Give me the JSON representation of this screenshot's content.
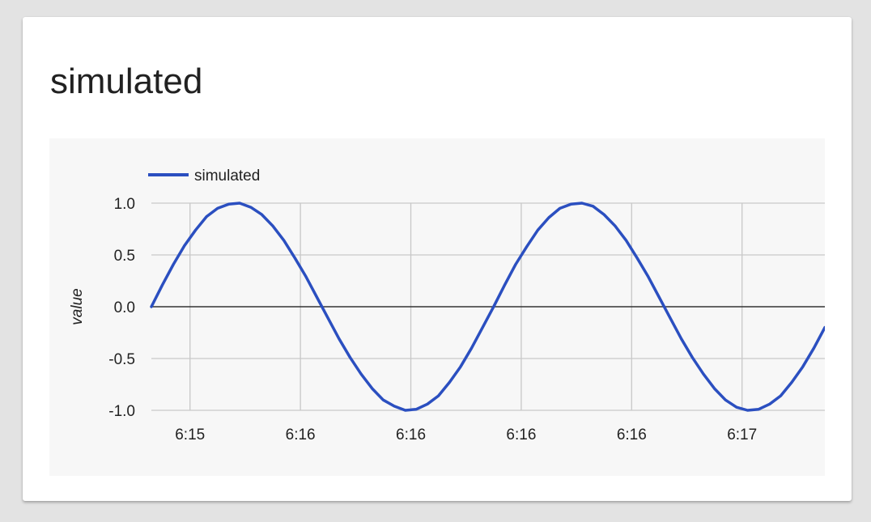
{
  "card": {
    "title": "simulated"
  },
  "chart_data": {
    "type": "line",
    "title": "",
    "xlabel": "",
    "ylabel": "value",
    "ylim": [
      -1.0,
      1.0
    ],
    "yticks": [
      "1.0",
      "0.5",
      "0.0",
      "-0.5",
      "-1.0"
    ],
    "yticks_values": [
      1.0,
      0.5,
      0.0,
      -0.5,
      -1.0
    ],
    "xticks": [
      "6:15",
      "6:16",
      "6:16",
      "6:16",
      "6:16",
      "6:17"
    ],
    "xticks_index": [
      3.5,
      13.5,
      23.5,
      33.5,
      43.5,
      53.5
    ],
    "x_extent": [
      0,
      61
    ],
    "legend": {
      "position": "top-left",
      "entries": [
        "simulated"
      ]
    },
    "grid": true,
    "colors": {
      "series": "#2b4fc0",
      "grid": "#c8c8c8",
      "zero_line": "#333333",
      "plot_bg": "#f7f7f7"
    },
    "series": [
      {
        "name": "simulated",
        "values": [
          0.0,
          0.21,
          0.41,
          0.59,
          0.74,
          0.87,
          0.95,
          0.99,
          1.0,
          0.96,
          0.89,
          0.78,
          0.64,
          0.47,
          0.29,
          0.09,
          -0.11,
          -0.31,
          -0.49,
          -0.65,
          -0.79,
          -0.9,
          -0.96,
          -1.0,
          -0.99,
          -0.94,
          -0.86,
          -0.73,
          -0.58,
          -0.4,
          -0.2,
          0.0,
          0.21,
          0.41,
          0.58,
          0.74,
          0.86,
          0.95,
          0.99,
          1.0,
          0.97,
          0.89,
          0.78,
          0.64,
          0.47,
          0.29,
          0.09,
          -0.11,
          -0.31,
          -0.49,
          -0.65,
          -0.79,
          -0.9,
          -0.97,
          -1.0,
          -0.99,
          -0.94,
          -0.86,
          -0.73,
          -0.58,
          -0.4,
          -0.2
        ]
      }
    ]
  }
}
